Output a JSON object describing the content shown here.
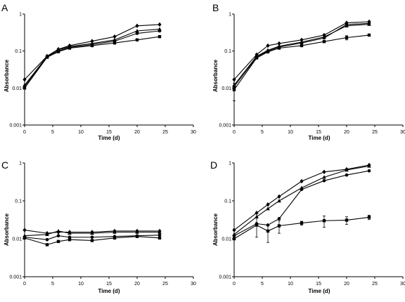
{
  "chart_data": [
    {
      "type": "line",
      "panel_label": "A",
      "xlabel": "Time (d)",
      "ylabel": "Absorbance",
      "xlim": [
        0,
        30
      ],
      "ylim": [
        0.001,
        1
      ],
      "yscale": "log",
      "x_ticks": [
        "0",
        "5",
        "10",
        "15",
        "20",
        "25",
        "30"
      ],
      "y_ticks": [
        "0.001",
        "0.01",
        "0.1",
        "1"
      ],
      "series": [
        {
          "marker": "diamond",
          "x": [
            0,
            4,
            6,
            8,
            12,
            16,
            20,
            24
          ],
          "y": [
            0.017,
            0.073,
            0.112,
            0.14,
            0.185,
            0.245,
            0.48,
            0.52
          ]
        },
        {
          "marker": "triangle",
          "x": [
            0,
            4,
            6,
            8,
            12,
            16,
            20,
            24
          ],
          "y": [
            0.012,
            0.072,
            0.108,
            0.132,
            0.16,
            0.2,
            0.35,
            0.39
          ]
        },
        {
          "marker": "circle",
          "x": [
            0,
            4,
            6,
            8,
            12,
            16,
            20,
            24
          ],
          "y": [
            0.011,
            0.07,
            0.1,
            0.125,
            0.15,
            0.185,
            0.3,
            0.35
          ]
        },
        {
          "marker": "square",
          "x": [
            0,
            4,
            6,
            8,
            12,
            16,
            20,
            24
          ],
          "y": [
            0.01,
            0.068,
            0.096,
            0.12,
            0.14,
            0.165,
            0.2,
            0.245
          ]
        }
      ]
    },
    {
      "type": "line",
      "panel_label": "B",
      "xlabel": "Time (d)",
      "ylabel": "Absorbance",
      "xlim": [
        0,
        30
      ],
      "ylim": [
        0.001,
        1
      ],
      "yscale": "log",
      "x_ticks": [
        "0",
        "5",
        "10",
        "15",
        "20",
        "25",
        "30"
      ],
      "y_ticks": [
        "0.001",
        "0.01",
        "0.1",
        "1"
      ],
      "series": [
        {
          "marker": "diamond",
          "x": [
            0,
            4,
            6,
            8,
            12,
            16,
            20,
            24
          ],
          "y": [
            0.017,
            0.08,
            0.14,
            0.16,
            0.2,
            0.27,
            0.58,
            0.62
          ]
        },
        {
          "marker": "triangle",
          "x": [
            0,
            4,
            6,
            8,
            12,
            16,
            20,
            24
          ],
          "y": [
            0.012,
            0.072,
            0.105,
            0.135,
            0.175,
            0.24,
            0.48,
            0.53
          ]
        },
        {
          "marker": "circle",
          "x": [
            0,
            4,
            6,
            8,
            12,
            16,
            20,
            24
          ],
          "y": [
            0.011,
            0.068,
            0.1,
            0.128,
            0.165,
            0.225,
            0.52,
            0.56
          ]
        },
        {
          "marker": "square",
          "x": [
            0,
            4,
            6,
            8,
            12,
            16,
            20,
            24
          ],
          "y": [
            0.009,
            0.065,
            0.095,
            0.12,
            0.14,
            0.18,
            0.23,
            0.27
          ],
          "err": [
            0.0045,
            0,
            0,
            0,
            0,
            0,
            0.03,
            0
          ]
        }
      ]
    },
    {
      "type": "line",
      "panel_label": "C",
      "xlabel": "Time (d)",
      "ylabel": "Absorbance",
      "xlim": [
        0,
        30
      ],
      "ylim": [
        0.001,
        1
      ],
      "yscale": "log",
      "x_ticks": [
        "0",
        "5",
        "10",
        "15",
        "20",
        "25",
        "30"
      ],
      "y_ticks": [
        "0.001",
        "0.01",
        "0.1",
        "1"
      ],
      "series": [
        {
          "marker": "diamond",
          "x": [
            0,
            4,
            6,
            8,
            12,
            16,
            20,
            24
          ],
          "y": [
            0.017,
            0.014,
            0.015,
            0.015,
            0.015,
            0.016,
            0.016,
            0.016
          ]
        },
        {
          "marker": "triangle",
          "x": [
            0,
            4,
            6,
            8,
            12,
            16,
            20,
            24
          ],
          "y": [
            0.012,
            0.013,
            0.016,
            0.014,
            0.014,
            0.015,
            0.015,
            0.015
          ]
        },
        {
          "marker": "circle",
          "x": [
            0,
            4,
            6,
            8,
            12,
            16,
            20,
            24
          ],
          "y": [
            0.011,
            0.0095,
            0.012,
            0.011,
            0.011,
            0.0115,
            0.012,
            0.0125
          ]
        },
        {
          "marker": "square",
          "x": [
            0,
            4,
            6,
            8,
            12,
            16,
            20,
            24
          ],
          "y": [
            0.0105,
            0.007,
            0.0085,
            0.0095,
            0.009,
            0.0105,
            0.0115,
            0.0105
          ]
        }
      ]
    },
    {
      "type": "line",
      "panel_label": "D",
      "xlabel": "Time (d)",
      "ylabel": "Absorbance",
      "xlim": [
        0,
        30
      ],
      "ylim": [
        0.001,
        1
      ],
      "yscale": "log",
      "x_ticks": [
        "0",
        "5",
        "10",
        "15",
        "20",
        "25",
        "30"
      ],
      "y_ticks": [
        "0.001",
        "0.01",
        "0.1",
        "1"
      ],
      "series": [
        {
          "marker": "diamond",
          "x": [
            0,
            4,
            6,
            8,
            12,
            16,
            20,
            24
          ],
          "y": [
            0.017,
            0.048,
            0.08,
            0.13,
            0.33,
            0.58,
            0.68,
            0.88
          ]
        },
        {
          "marker": "triangle",
          "x": [
            0,
            4,
            6,
            8,
            12,
            16,
            20,
            24
          ],
          "y": [
            0.013,
            0.038,
            0.062,
            0.1,
            0.22,
            0.42,
            0.65,
            0.83
          ]
        },
        {
          "marker": "circle",
          "x": [
            0,
            4,
            6,
            8,
            12,
            16,
            20,
            24
          ],
          "y": [
            0.012,
            0.025,
            0.023,
            0.034,
            0.2,
            0.34,
            0.48,
            0.62
          ]
        },
        {
          "marker": "square",
          "x": [
            0,
            4,
            6,
            8,
            12,
            16,
            20,
            24
          ],
          "y": [
            0.01,
            0.023,
            0.016,
            0.022,
            0.026,
            0.03,
            0.031,
            0.037
          ],
          "err": [
            0,
            0.012,
            0.008,
            0.008,
            0.003,
            0.01,
            0.007,
            0.005
          ]
        }
      ]
    }
  ]
}
